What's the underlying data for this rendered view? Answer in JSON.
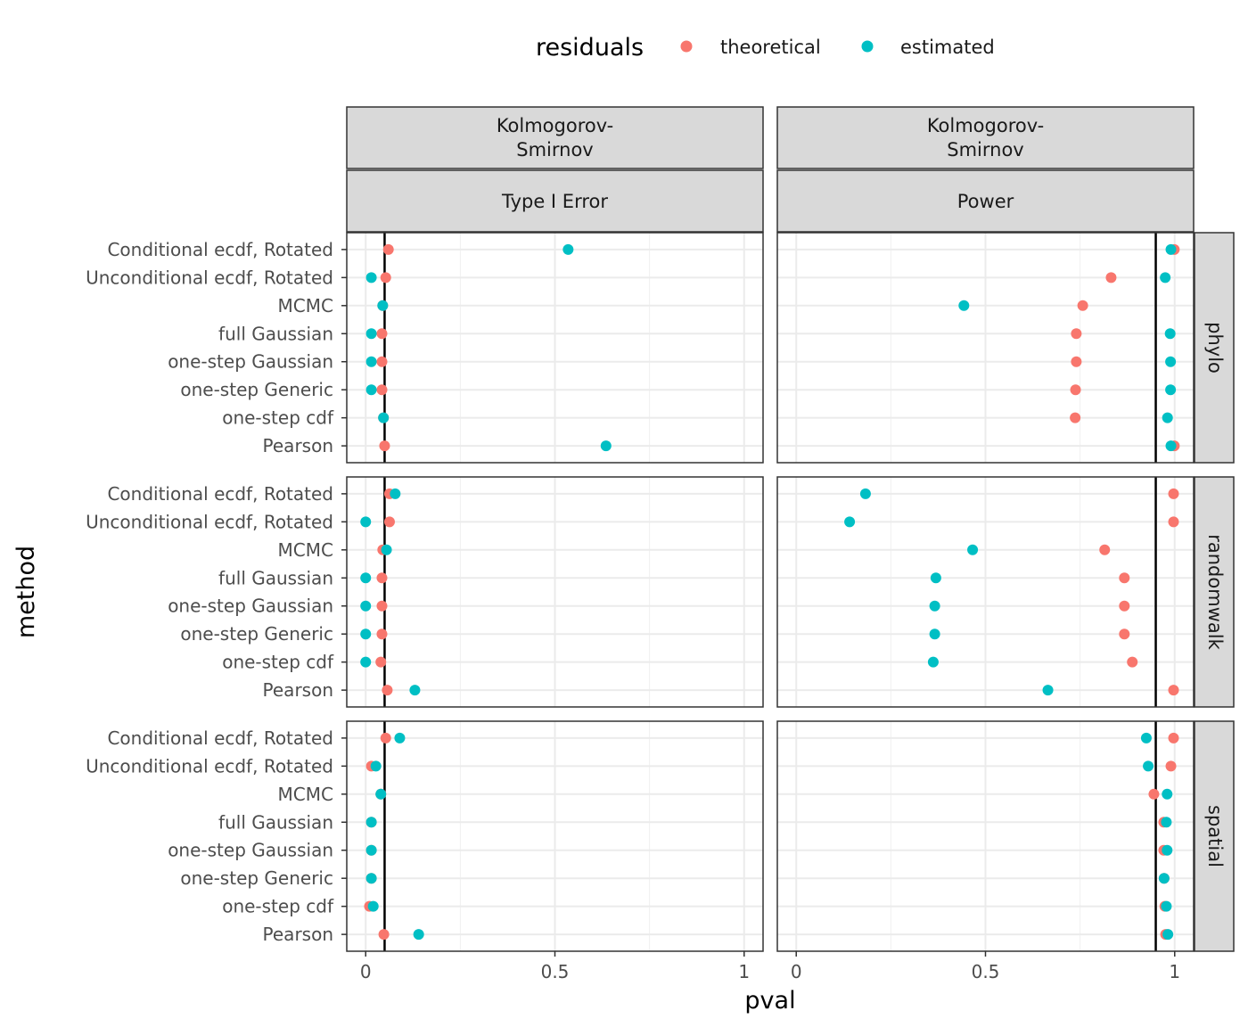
{
  "chart_data": {
    "type": "scatter",
    "legend": {
      "title": "residuals",
      "position": "top",
      "entries": [
        {
          "name": "theoretical",
          "color": "#F8766D"
        },
        {
          "name": "estimated",
          "color": "#00BFC4"
        }
      ]
    },
    "xlabel": "pval",
    "ylabel": "method",
    "xlim": [
      0,
      1
    ],
    "xticks": [
      0,
      0.5,
      1
    ],
    "xtick_labels": [
      "0",
      "0.5",
      "1"
    ],
    "grid": true,
    "methods": [
      "Conditional ecdf, Rotated",
      "Unconditional ecdf, Rotated",
      "MCMC",
      "full Gaussian",
      "one-step Gaussian",
      "one-step Generic",
      "one-step cdf",
      "Pearson"
    ],
    "columns": [
      {
        "test": "Kolmogorov-\nSmirnov",
        "measure": "Type I Error",
        "reference_line": 0.05
      },
      {
        "test": "Kolmogorov-\nSmirnov",
        "measure": "Power",
        "reference_line": 0.95
      }
    ],
    "rows": [
      "phylo",
      "randomwalk",
      "spatial"
    ],
    "panels": [
      {
        "row": "phylo",
        "column": "Type I Error",
        "theoretical": [
          0.06,
          0.053,
          0.045,
          0.043,
          0.043,
          0.043,
          0.047,
          0.05
        ],
        "estimated": [
          0.535,
          0.015,
          0.045,
          0.015,
          0.015,
          0.015,
          0.047,
          0.635
        ]
      },
      {
        "row": "phylo",
        "column": "Power",
        "theoretical": [
          0.999,
          0.832,
          0.757,
          0.74,
          0.74,
          0.738,
          0.737,
          0.999
        ],
        "estimated": [
          0.99,
          0.975,
          0.443,
          0.988,
          0.989,
          0.989,
          0.981,
          0.99
        ]
      },
      {
        "row": "randomwalk",
        "column": "Type I Error",
        "theoretical": [
          0.063,
          0.063,
          0.045,
          0.043,
          0.043,
          0.043,
          0.04,
          0.057
        ],
        "estimated": [
          0.078,
          0.0,
          0.055,
          0.0,
          0.0,
          0.0,
          0.0,
          0.13
        ]
      },
      {
        "row": "randomwalk",
        "column": "Power",
        "theoretical": [
          0.997,
          0.997,
          0.815,
          0.867,
          0.867,
          0.867,
          0.888,
          0.997
        ],
        "estimated": [
          0.183,
          0.141,
          0.466,
          0.369,
          0.366,
          0.366,
          0.362,
          0.665
        ]
      },
      {
        "row": "spatial",
        "column": "Type I Error",
        "theoretical": [
          0.053,
          0.015,
          0.04,
          0.015,
          0.015,
          0.015,
          0.01,
          0.048
        ],
        "estimated": [
          0.09,
          0.027,
          0.04,
          0.015,
          0.015,
          0.015,
          0.02,
          0.14
        ]
      },
      {
        "row": "spatial",
        "column": "Power",
        "theoretical": [
          0.997,
          0.99,
          0.945,
          0.971,
          0.971,
          0.972,
          0.974,
          0.976
        ],
        "estimated": [
          0.925,
          0.93,
          0.98,
          0.978,
          0.98,
          0.972,
          0.978,
          0.982
        ]
      }
    ]
  }
}
